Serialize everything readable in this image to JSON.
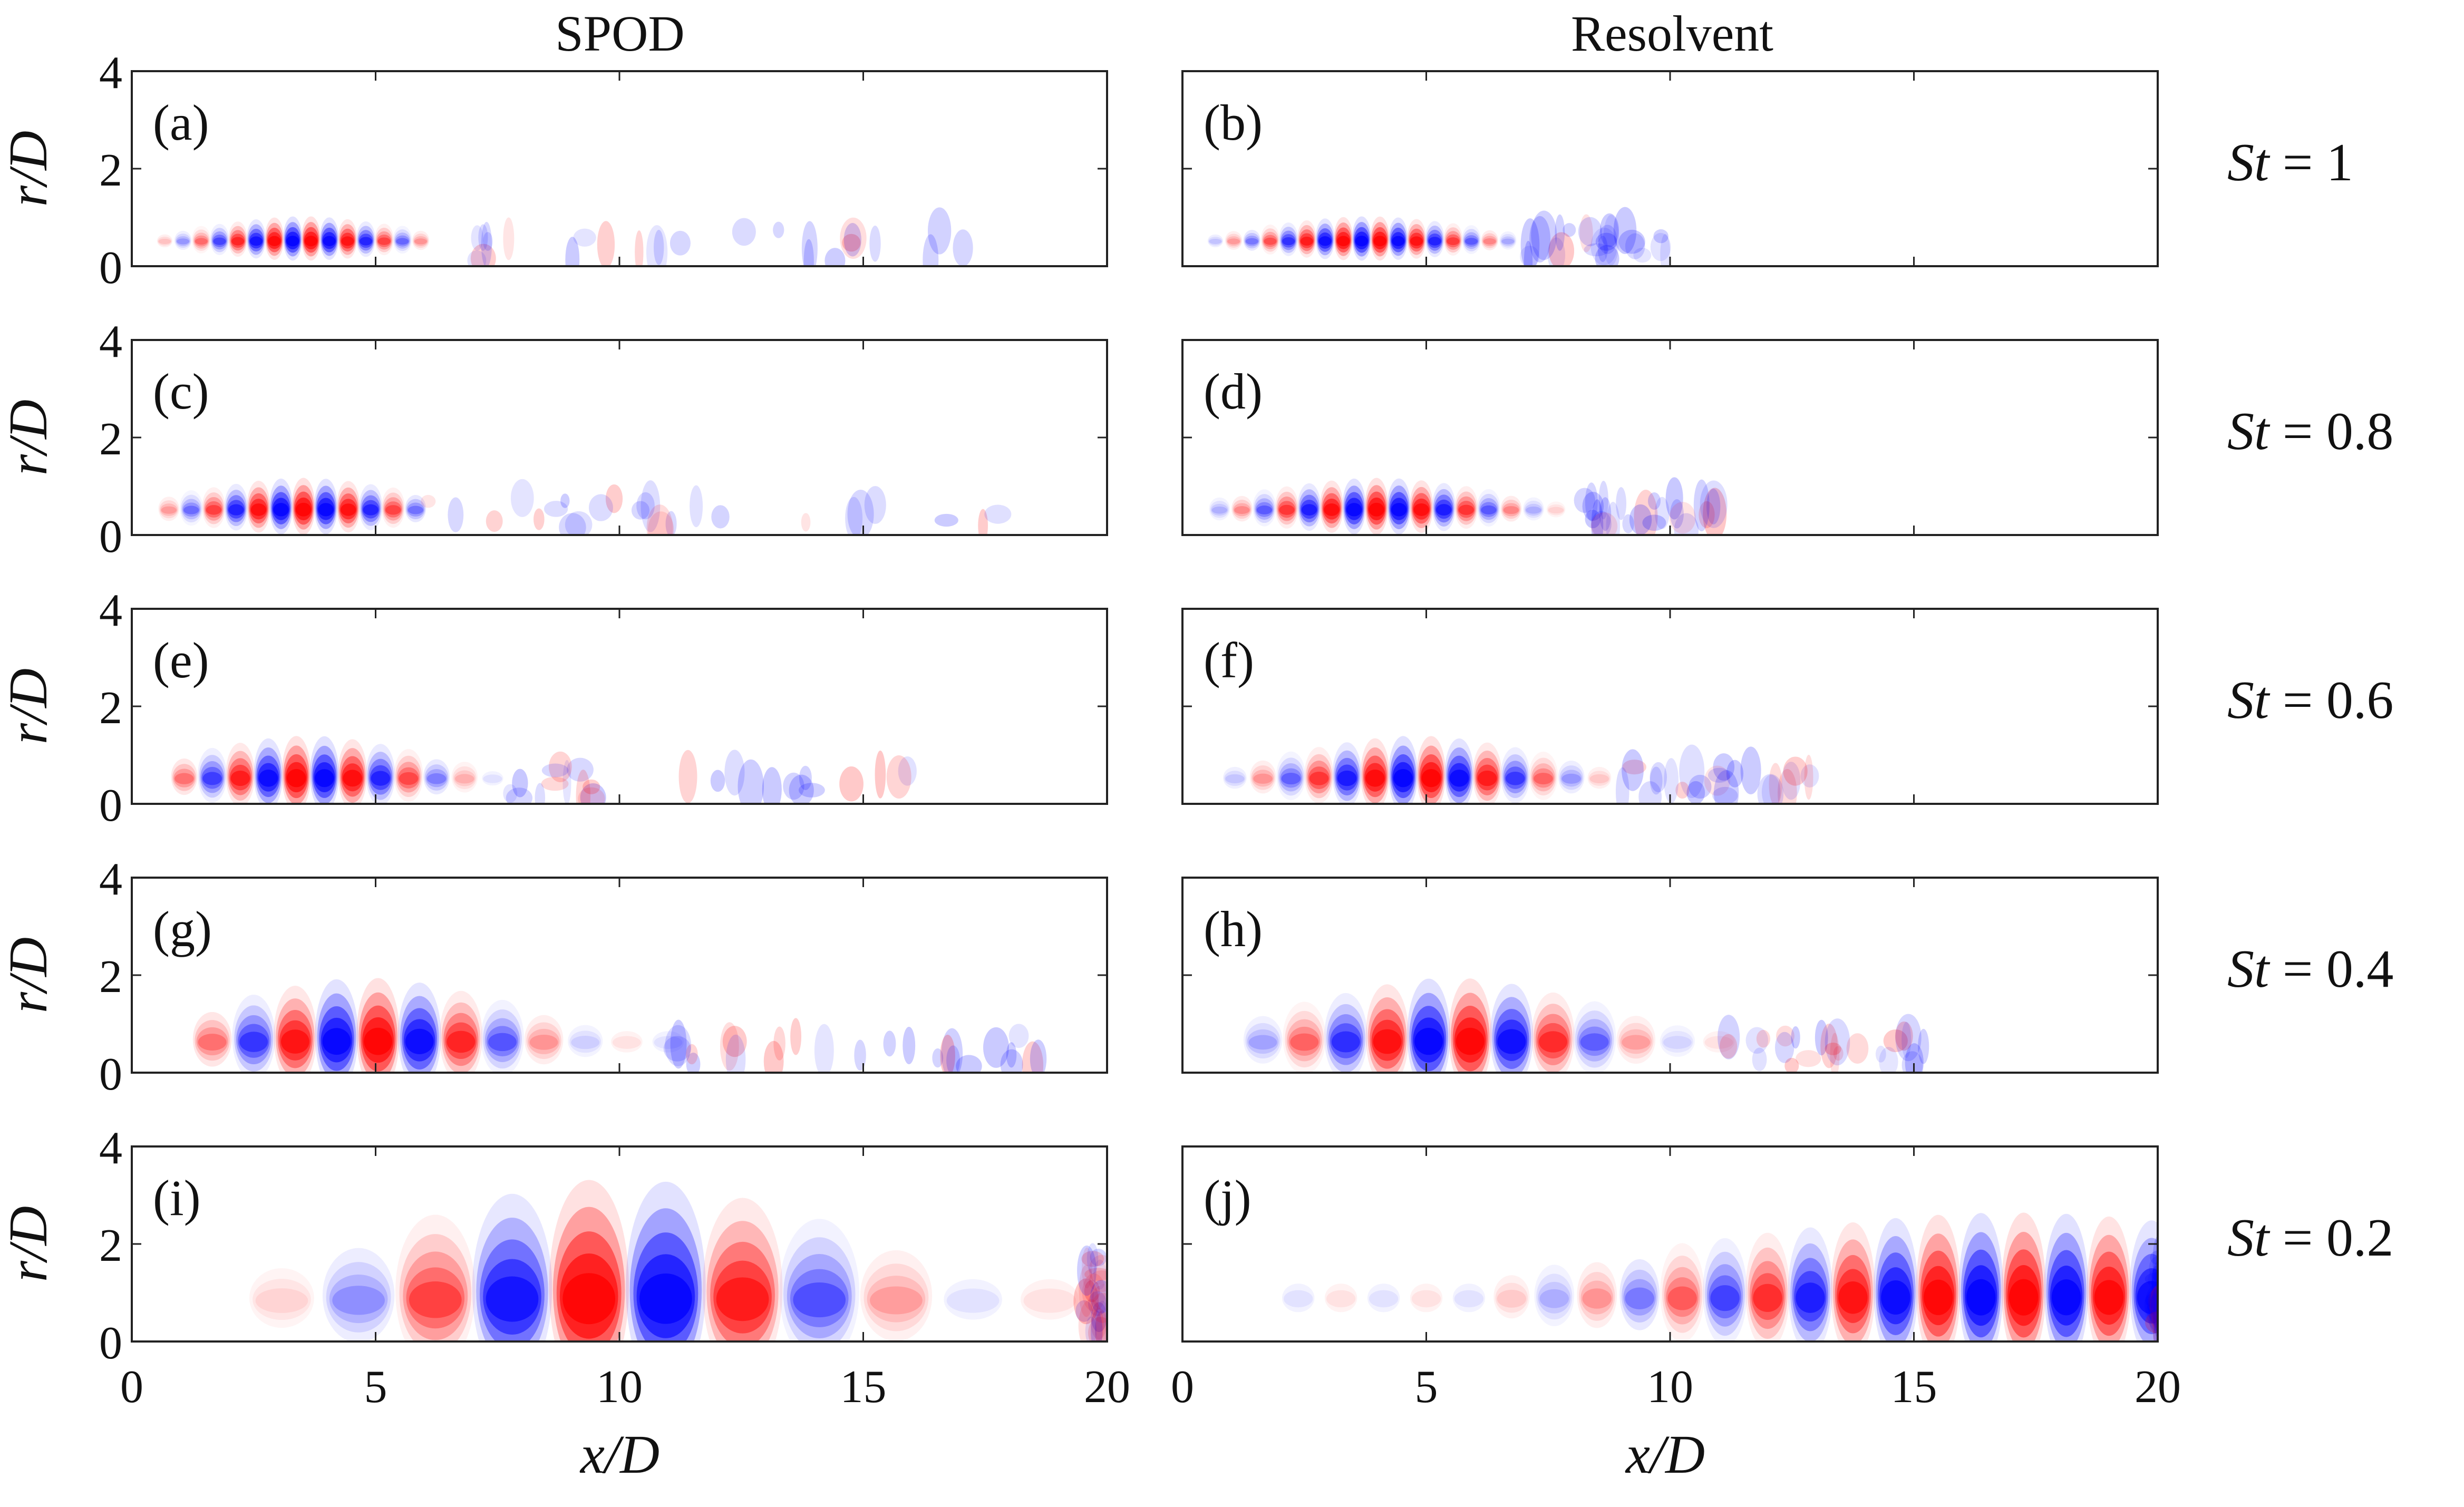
{
  "column_titles": {
    "left": "SPOD",
    "right": "Resolvent"
  },
  "row_labels": [
    "St = 1",
    "St = 0.8",
    "St = 0.6",
    "St = 0.4",
    "St = 0.2"
  ],
  "row_label_parts": [
    {
      "sym": "St",
      "eq": "=",
      "val": "1"
    },
    {
      "sym": "St",
      "eq": "=",
      "val": "0.8"
    },
    {
      "sym": "St",
      "eq": "=",
      "val": "0.6"
    },
    {
      "sym": "St",
      "eq": "=",
      "val": "0.4"
    },
    {
      "sym": "St",
      "eq": "=",
      "val": "0.2"
    }
  ],
  "x_axis_label": "x/D",
  "y_axis_label": "r/D",
  "colors": {
    "positive": "#ff0000",
    "negative": "#0000ff",
    "background": "#ffffff",
    "frame": "#222222"
  },
  "chart_data": [
    {
      "panel": "(a)",
      "method": "SPOD",
      "St": 1,
      "type": "heatmap",
      "xlim": [
        0,
        20
      ],
      "ylim": [
        0,
        4
      ],
      "xticks": [
        0,
        5,
        10,
        15,
        20
      ],
      "yticks": [
        0,
        2,
        4
      ],
      "xlabel": "x/D",
      "ylabel": "r/D",
      "structure": {
        "x_start": 0.3,
        "x_end": 6.0,
        "wavelength": 0.75,
        "peak_x": 3.5,
        "envelope_width": 2.0,
        "r_center": 0.5,
        "r_extent": 0.35,
        "noise_to_x": 18
      }
    },
    {
      "panel": "(b)",
      "method": "Resolvent",
      "St": 1,
      "type": "heatmap",
      "xlim": [
        0,
        20
      ],
      "ylim": [
        0,
        4
      ],
      "xticks": [
        0,
        5,
        10,
        15,
        20
      ],
      "yticks": [
        0,
        2,
        4
      ],
      "xlabel": "x/D",
      "ylabel": "r/D",
      "structure": {
        "x_start": 0.3,
        "x_end": 7.0,
        "wavelength": 0.75,
        "peak_x": 3.8,
        "envelope_width": 2.2,
        "r_center": 0.5,
        "r_extent": 0.35,
        "noise_to_x": 10
      }
    },
    {
      "panel": "(c)",
      "method": "SPOD",
      "St": 0.8,
      "type": "heatmap",
      "xlim": [
        0,
        20
      ],
      "ylim": [
        0,
        4
      ],
      "xticks": [
        0,
        5,
        10,
        15,
        20
      ],
      "yticks": [
        0,
        2,
        4
      ],
      "xlabel": "x/D",
      "ylabel": "r/D",
      "structure": {
        "x_start": 0.3,
        "x_end": 6.0,
        "wavelength": 0.92,
        "peak_x": 3.5,
        "envelope_width": 2.2,
        "r_center": 0.5,
        "r_extent": 0.45,
        "noise_to_x": 18
      }
    },
    {
      "panel": "(d)",
      "method": "Resolvent",
      "St": 0.8,
      "type": "heatmap",
      "xlim": [
        0,
        20
      ],
      "ylim": [
        0,
        4
      ],
      "xticks": [
        0,
        5,
        10,
        15,
        20
      ],
      "yticks": [
        0,
        2,
        4
      ],
      "xlabel": "x/D",
      "ylabel": "r/D",
      "structure": {
        "x_start": 0.3,
        "x_end": 8.0,
        "wavelength": 0.92,
        "peak_x": 4.0,
        "envelope_width": 2.4,
        "r_center": 0.5,
        "r_extent": 0.45,
        "noise_to_x": 11
      }
    },
    {
      "panel": "(e)",
      "method": "SPOD",
      "St": 0.6,
      "type": "heatmap",
      "xlim": [
        0,
        20
      ],
      "ylim": [
        0,
        4
      ],
      "xticks": [
        0,
        5,
        10,
        15,
        20
      ],
      "yticks": [
        0,
        2,
        4
      ],
      "xlabel": "x/D",
      "ylabel": "r/D",
      "structure": {
        "x_start": 0.5,
        "x_end": 7.5,
        "wavelength": 1.15,
        "peak_x": 3.6,
        "envelope_width": 2.4,
        "r_center": 0.5,
        "r_extent": 0.6,
        "noise_to_x": 16
      }
    },
    {
      "panel": "(f)",
      "method": "Resolvent",
      "St": 0.6,
      "type": "heatmap",
      "xlim": [
        0,
        20
      ],
      "ylim": [
        0,
        4
      ],
      "xticks": [
        0,
        5,
        10,
        15,
        20
      ],
      "yticks": [
        0,
        2,
        4
      ],
      "xlabel": "x/D",
      "ylabel": "r/D",
      "structure": {
        "x_start": 0.5,
        "x_end": 9.0,
        "wavelength": 1.15,
        "peak_x": 4.8,
        "envelope_width": 2.6,
        "r_center": 0.5,
        "r_extent": 0.6,
        "noise_to_x": 13
      }
    },
    {
      "panel": "(g)",
      "method": "SPOD",
      "St": 0.4,
      "type": "heatmap",
      "xlim": [
        0,
        20
      ],
      "ylim": [
        0,
        4
      ],
      "xticks": [
        0,
        5,
        10,
        15,
        20
      ],
      "yticks": [
        0,
        2,
        4
      ],
      "xlabel": "x/D",
      "ylabel": "r/D",
      "structure": {
        "x_start": 0.8,
        "x_end": 11.0,
        "wavelength": 1.7,
        "peak_x": 4.8,
        "envelope_width": 3.0,
        "r_center": 0.6,
        "r_extent": 0.9,
        "noise_to_x": 19
      }
    },
    {
      "panel": "(h)",
      "method": "Resolvent",
      "St": 0.4,
      "type": "heatmap",
      "xlim": [
        0,
        20
      ],
      "ylim": [
        0,
        4
      ],
      "xticks": [
        0,
        5,
        10,
        15,
        20
      ],
      "yticks": [
        0,
        2,
        4
      ],
      "xlabel": "x/D",
      "ylabel": "r/D",
      "structure": {
        "x_start": 0.8,
        "x_end": 11.0,
        "wavelength": 1.7,
        "peak_x": 5.5,
        "envelope_width": 3.0,
        "r_center": 0.6,
        "r_extent": 0.9,
        "noise_to_x": 16
      }
    },
    {
      "panel": "(i)",
      "method": "SPOD",
      "St": 0.2,
      "type": "heatmap",
      "xlim": [
        0,
        20
      ],
      "ylim": [
        0,
        4
      ],
      "xticks": [
        0,
        5,
        10,
        15,
        20
      ],
      "yticks": [
        0,
        2,
        4
      ],
      "xlabel": "x/D",
      "ylabel": "r/D",
      "structure": {
        "x_start": 1.5,
        "x_end": 19.5,
        "wavelength": 3.15,
        "peak_x": 10.0,
        "envelope_width": 4.5,
        "r_center": 0.8,
        "r_extent": 1.7,
        "noise_to_x": 20
      }
    },
    {
      "panel": "(j)",
      "method": "Resolvent",
      "St": 0.2,
      "type": "heatmap",
      "xlim": [
        0,
        20
      ],
      "ylim": [
        0,
        4
      ],
      "xticks": [
        0,
        5,
        10,
        15,
        20
      ],
      "yticks": [
        0,
        2,
        4
      ],
      "xlabel": "x/D",
      "ylabel": "r/D",
      "structure": {
        "x_start": 1.5,
        "x_end": 20.0,
        "wavelength": 1.75,
        "peak_x": 17.0,
        "envelope_width": 7.0,
        "r_center": 0.85,
        "r_extent": 1.2,
        "noise_to_x": 20
      }
    }
  ]
}
